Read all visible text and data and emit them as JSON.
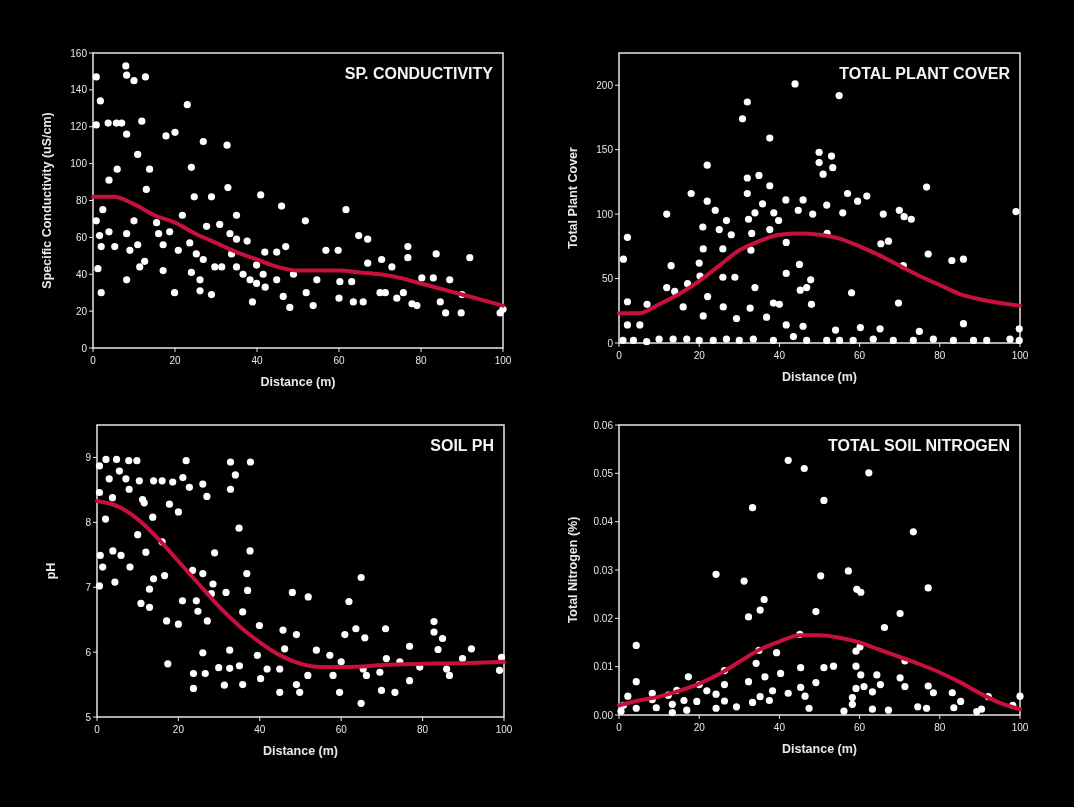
{
  "chart_data": [
    {
      "type": "scatter",
      "title": "SP.  CONDUCTIVITY",
      "xlabel": "Distance (m)",
      "ylabel": "Specific Conductivity (uS/cm)",
      "xlim": [
        0,
        100
      ],
      "xticks": [
        0,
        20,
        40,
        60,
        80,
        100
      ],
      "ylim": [
        0,
        160
      ],
      "yticks": [
        0,
        20,
        40,
        60,
        80,
        100,
        120,
        140,
        160
      ],
      "series": [
        {
          "marker": "circle",
          "color": "#ffffff",
          "x": [
            0.8,
            1.8,
            0.8,
            3.7,
            5.7,
            7,
            8,
            8.2,
            10,
            12.8,
            8.2,
            11.9,
            10.9,
            5.9,
            13.8,
            3.9,
            13,
            23,
            20,
            17.8,
            26.9,
            32.7,
            24,
            32.9,
            40.9,
            46,
            61.7,
            28.9,
            24.7,
            51.8,
            0.8,
            2.4,
            1.6,
            2,
            3.9,
            5.3,
            8.2,
            10,
            10.9,
            15.5,
            16,
            17.1,
            18.7,
            21.8,
            20.8,
            23.6,
            25.2,
            26.9,
            27.7,
            30.9,
            33.4,
            35,
            37.6,
            33.8,
            31.4,
            35,
            36.6,
            39.9,
            41.5,
            41.9,
            44.8,
            47,
            44.8,
            46.4,
            48,
            48.9,
            52,
            53.7,
            54.6,
            56.8,
            59.8,
            60.2,
            60,
            63.1,
            64.8,
            67,
            63.5,
            65.9,
            67,
            70.4,
            70,
            71.3,
            72.9,
            74.1,
            75.7,
            76.8,
            76.8,
            77.8,
            79,
            80.2,
            83,
            83.7,
            84.7,
            86,
            87,
            89.8,
            91.9,
            90,
            99.3,
            100,
            35,
            29.7,
            28.9,
            26.1,
            26.1,
            19.9,
            17.1,
            12.6,
            11.4,
            8.2,
            9,
            2,
            1.2,
            24,
            38.3,
            39.9,
            38.9,
            42
          ],
          "values": [
            147,
            134,
            121,
            122,
            122,
            122,
            153,
            148,
            145,
            147,
            116,
            123,
            105,
            97,
            97,
            91,
            86,
            132,
            117,
            115,
            112,
            110,
            98,
            87,
            83,
            77,
            75,
            82,
            82,
            69,
            69,
            75,
            61,
            55,
            63,
            55,
            62,
            69,
            56,
            68,
            62,
            56,
            63,
            72,
            53,
            57,
            51,
            48,
            66,
            67,
            62,
            59,
            58,
            51,
            44,
            44,
            40,
            45,
            40,
            52,
            52,
            55,
            37,
            28,
            22,
            40,
            30,
            23,
            37,
            53,
            53,
            36,
            27,
            36,
            61,
            59,
            25,
            25,
            46,
            48,
            30,
            30,
            44,
            27,
            30,
            55,
            49,
            24,
            23,
            38,
            38,
            51,
            25,
            19,
            37,
            19,
            49,
            29,
            19,
            21,
            72,
            44,
            29,
            37,
            31,
            30,
            42,
            47,
            44,
            37,
            53,
            30,
            43,
            41,
            37,
            35,
            25,
            33
          ]
        },
        {
          "type": "line",
          "color": "#c8103c",
          "x": [
            0,
            5,
            10,
            15,
            20,
            25,
            30,
            35,
            40,
            45,
            50,
            55,
            60,
            65,
            70,
            75,
            80,
            85,
            90,
            95,
            100
          ],
          "values": [
            82,
            82,
            78,
            72,
            68,
            62,
            57,
            52,
            48,
            44,
            42,
            42,
            42,
            41,
            40,
            38,
            35,
            32,
            29,
            26,
            23
          ]
        }
      ]
    },
    {
      "type": "scatter",
      "title": "TOTAL PLANT COVER",
      "xlabel": "Distance (m)",
      "ylabel": "Total Plant Cover",
      "xlim": [
        0,
        100
      ],
      "xticks": [
        0,
        20,
        40,
        60,
        80,
        100
      ],
      "ylim": [
        0,
        225
      ],
      "yticks": [
        0,
        50,
        100,
        150,
        200
      ],
      "series": [
        {
          "marker": "circle",
          "color": "#ffffff",
          "x": [
            1.1,
            2.1,
            2.1,
            2.1,
            5.2,
            7,
            11.9,
            13,
            11.9,
            13.9,
            16,
            17.1,
            18,
            22,
            22,
            20.9,
            21,
            20,
            20.2,
            21,
            22.1,
            24,
            25,
            25.9,
            25.9,
            26.8,
            28,
            28.9,
            26,
            29.3,
            30.8,
            32,
            32,
            32,
            32.3,
            33.1,
            32.9,
            34.9,
            33.9,
            35.8,
            37.6,
            37.6,
            37.6,
            38.6,
            39.8,
            41.6,
            41.7,
            41.7,
            43.9,
            44.7,
            45.9,
            48.3,
            49.9,
            49.9,
            50.9,
            51.8,
            51.9,
            53,
            53.3,
            54.9,
            55.8,
            57,
            59.5,
            61.8,
            65.9,
            65.3,
            67.2,
            69.9,
            71.1,
            72.9,
            70.9,
            69.7,
            76.7,
            77.1,
            83,
            85.9,
            85.9,
            99,
            99.8,
            45,
            45.2,
            46.8,
            47.8,
            48,
            58,
            32.7,
            33.9,
            36.8,
            38.5,
            40,
            41.7,
            45.9,
            60.2,
            65.1,
            74.9,
            54,
            1,
            3.6,
            6.9,
            10,
            13.5,
            16.9,
            20,
            23.5,
            26.8,
            30,
            33.5,
            38.5,
            43.5,
            46.8,
            51.8,
            55,
            58.4,
            63.4,
            68.4,
            73.4,
            78.4,
            83.4,
            88.4,
            91.7,
            97.5,
            99.8
          ],
          "values": [
            65,
            82,
            32,
            14,
            14,
            30,
            100,
            60,
            43,
            40,
            28,
            46,
            116,
            138,
            110,
            90,
            73,
            62,
            52,
            21,
            36,
            103,
            88,
            73,
            51,
            95,
            84,
            51,
            28,
            19,
            174,
            187,
            128,
            116,
            96,
            85,
            72,
            130,
            101,
            108,
            159,
            122,
            88,
            101,
            95,
            111,
            78,
            54,
            201,
            103,
            111,
            100,
            148,
            140,
            131,
            107,
            85,
            145,
            136,
            192,
            101,
            116,
            110,
            114,
            100,
            77,
            79,
            103,
            98,
            96,
            60,
            31,
            121,
            69,
            64,
            65,
            15,
            102,
            11,
            61,
            41,
            43,
            49,
            30,
            39,
            27,
            43,
            20,
            31,
            30,
            14,
            13,
            12,
            11,
            9,
            10,
            2,
            2,
            1,
            3,
            3,
            3,
            2,
            2,
            3,
            2,
            3,
            2,
            5,
            2,
            2,
            2,
            2,
            3,
            2,
            2,
            3,
            2,
            2,
            2,
            3,
            2
          ]
        },
        {
          "type": "line",
          "color": "#c8103c",
          "x": [
            0,
            5,
            10,
            15,
            20,
            25,
            30,
            35,
            40,
            45,
            50,
            55,
            60,
            65,
            70,
            75,
            80,
            85,
            90,
            95,
            100
          ],
          "values": [
            23,
            23,
            30,
            38,
            48,
            60,
            72,
            79,
            84,
            85,
            84,
            81,
            75,
            68,
            60,
            52,
            45,
            38,
            34,
            31,
            29
          ]
        }
      ]
    },
    {
      "type": "scatter",
      "title": "SOIL PH",
      "xlabel": "Distance (m)",
      "ylabel": "pH",
      "xlim": [
        0,
        100
      ],
      "xticks": [
        0,
        20,
        40,
        60,
        80,
        100
      ],
      "ylim": [
        5,
        9.5
      ],
      "yticks": [
        5,
        6,
        7,
        8,
        9
      ],
      "series": [
        {
          "marker": "circle",
          "color": "#ffffff",
          "x": [
            0.6,
            2.2,
            4.8,
            7.8,
            9.8,
            21.9,
            32.8,
            37.7,
            34,
            0.6,
            3,
            5.5,
            7.1,
            7.9,
            10.4,
            13.9,
            16,
            18.6,
            21.1,
            22.7,
            26,
            27,
            32.8,
            3.8,
            11.2,
            11.6,
            17.8,
            20,
            2.1,
            13.7,
            10,
            34.9,
            16,
            0.8,
            3.9,
            5.9,
            1.4,
            8.1,
            12,
            28.9,
            37.6,
            0.6,
            4.4,
            13.9,
            16.6,
            12.9,
            23.5,
            26,
            36.8,
            37,
            28.5,
            31.7,
            10.8,
            12.9,
            21,
            24.4,
            28.1,
            17.1,
            20,
            24.8,
            27.1,
            35.8,
            39.9,
            48,
            51.9,
            64.9,
            61.9,
            45.7,
            49,
            60.9,
            63.6,
            65.8,
            70.9,
            82.8,
            82.8,
            84.9,
            83.8,
            92,
            76.8,
            99.4,
            98.9,
            17.4,
            26,
            32.6,
            29.9,
            32.6,
            35,
            31.3,
            23.7,
            26.6,
            23.7,
            35.8,
            39.4,
            40.2,
            41.8,
            44.9,
            44.9,
            46.1,
            49,
            49.8,
            51.8,
            53.9,
            57.2,
            58,
            59.6,
            60,
            65.4,
            64.9,
            66.2,
            69.5,
            69.9,
            71.1,
            73.2,
            74.4,
            76.8,
            79.3,
            85.9,
            86.6,
            89.8
          ],
          "values": [
            8.87,
            8.97,
            8.97,
            8.95,
            8.95,
            8.95,
            8.93,
            8.93,
            8.73,
            8.46,
            8.67,
            8.79,
            8.67,
            8.51,
            8.64,
            8.64,
            8.64,
            8.62,
            8.69,
            8.54,
            8.59,
            8.4,
            8.51,
            8.38,
            8.35,
            8.3,
            8.28,
            8.16,
            8.05,
            8.08,
            7.81,
            7.91,
            7.7,
            7.49,
            7.56,
            7.49,
            7.31,
            7.31,
            7.54,
            7.53,
            7.56,
            7.02,
            7.08,
            7.13,
            7.18,
            6.97,
            7.26,
            7.21,
            7.21,
            6.95,
            7.05,
            6.92,
            6.75,
            6.69,
            6.79,
            6.79,
            6.9,
            6.48,
            6.43,
            6.63,
            6.48,
            6.62,
            6.41,
            6.92,
            6.85,
            7.15,
            6.78,
            6.34,
            6.27,
            6.27,
            6.36,
            6.22,
            6.36,
            6.47,
            6.31,
            6.21,
            6.04,
            6.05,
            6.09,
            5.92,
            5.72,
            5.82,
            5.99,
            6.03,
            5.76,
            5.75,
            5.79,
            5.49,
            5.67,
            5.67,
            5.44,
            5.5,
            5.95,
            5.59,
            5.74,
            5.74,
            5.38,
            6.05,
            5.5,
            5.38,
            5.64,
            6.03,
            5.95,
            5.64,
            5.38,
            5.85,
            5.74,
            5.21,
            5.64,
            5.69,
            5.41,
            5.9,
            5.38,
            5.85,
            5.56,
            5.77,
            5.74,
            5.64,
            5.9
          ]
        },
        {
          "type": "line",
          "color": "#c8103c",
          "x": [
            0,
            5,
            10,
            15,
            20,
            25,
            30,
            35,
            40,
            45,
            50,
            55,
            60,
            65,
            70,
            80,
            90,
            100
          ],
          "values": [
            8.33,
            8.25,
            8.05,
            7.75,
            7.4,
            7.05,
            6.7,
            6.4,
            6.15,
            5.95,
            5.82,
            5.77,
            5.77,
            5.78,
            5.8,
            5.82,
            5.83,
            5.85
          ]
        }
      ]
    },
    {
      "type": "scatter",
      "title": "TOTAL SOIL NITROGEN",
      "xlabel": "Distance (m)",
      "ylabel": "Total Nitrogen (%)",
      "xlim": [
        0,
        100
      ],
      "xticks": [
        0,
        20,
        40,
        60,
        80,
        100
      ],
      "ylim": [
        0,
        0.06
      ],
      "yticks": [
        {
          "value": 0,
          "label": "0.00"
        },
        0.01,
        0.02,
        0.03,
        0.04,
        0.05,
        0.06
      ],
      "series": [
        {
          "marker": "circle",
          "color": "#ffffff",
          "x": [
            42.2,
            46.2,
            62.3,
            51.1,
            33.3,
            73.4,
            24.2,
            31.2,
            50.3,
            57.2,
            59.3,
            60.3,
            77.1,
            36.2,
            35.2,
            32.3,
            49.1,
            70.1,
            66.2,
            4.3,
            45.1,
            34.9,
            39.3,
            59.1,
            60.1,
            34.2,
            45.3,
            51.1,
            53.5,
            59.1,
            71.3,
            26.3,
            40.3,
            17.3,
            36.4,
            60.3,
            64.3,
            4.3,
            32.3,
            26.3,
            20,
            49.1,
            65.2,
            70.1,
            71.3,
            77.1,
            78.4,
            83.1,
            45.3,
            59.1,
            61.1,
            63.2,
            14.4,
            21.9,
            24.2,
            38.3,
            42.2,
            46.4,
            35.2,
            2.2,
            8.3,
            8.3,
            12.3,
            16.2,
            19.4,
            26.3,
            33.3,
            37.5,
            58.2,
            58.2,
            85.2,
            92.1,
            100,
            98.2,
            1.1,
            4.3,
            9.3,
            13.3,
            13.3,
            16.9,
            24.2,
            29.3,
            47.4,
            56.1,
            63.2,
            67.2,
            74.5,
            76.7,
            83.5,
            89.2,
            90.4,
            0.5
          ],
          "values": [
            0.0527,
            0.051,
            0.0501,
            0.0444,
            0.0429,
            0.0379,
            0.0291,
            0.0277,
            0.0288,
            0.0298,
            0.026,
            0.0254,
            0.0263,
            0.0239,
            0.0217,
            0.0203,
            0.0214,
            0.021,
            0.0181,
            0.0144,
            0.0167,
            0.0134,
            0.0129,
            0.0132,
            0.0141,
            0.0107,
            0.0098,
            0.0098,
            0.0101,
            0.0101,
            0.0112,
            0.0092,
            0.0086,
            0.0079,
            0.0079,
            0.0083,
            0.0083,
            0.0069,
            0.0069,
            0.0063,
            0.0063,
            0.0067,
            0.0063,
            0.0077,
            0.0059,
            0.006,
            0.0046,
            0.0046,
            0.0057,
            0.0055,
            0.0059,
            0.0048,
            0.0051,
            0.005,
            0.0043,
            0.005,
            0.0045,
            0.0039,
            0.0038,
            0.0039,
            0.0045,
            0.0032,
            0.0041,
            0.003,
            0.0028,
            0.0029,
            0.0026,
            0.003,
            0.0036,
            0.0022,
            0.0028,
            0.0038,
            0.0039,
            0.002,
            0.002,
            0.0014,
            0.0015,
            0.0022,
            0.0005,
            0.001,
            0.0014,
            0.0017,
            0.0014,
            0.0008,
            0.0012,
            0.001,
            0.0017,
            0.0014,
            0.0015,
            0.0007,
            0.0012,
            0.0008
          ]
        },
        {
          "type": "line",
          "color": "#c8103c",
          "x": [
            0,
            5,
            10,
            15,
            20,
            25,
            30,
            35,
            40,
            45,
            50,
            55,
            60,
            65,
            70,
            75,
            80,
            85,
            90,
            95,
            100
          ],
          "values": [
            0.002,
            0.003,
            0.0038,
            0.005,
            0.0065,
            0.0085,
            0.011,
            0.0135,
            0.0152,
            0.0165,
            0.0165,
            0.016,
            0.015,
            0.0135,
            0.012,
            0.0105,
            0.0088,
            0.0068,
            0.0045,
            0.0025,
            0.0012
          ]
        }
      ]
    }
  ]
}
